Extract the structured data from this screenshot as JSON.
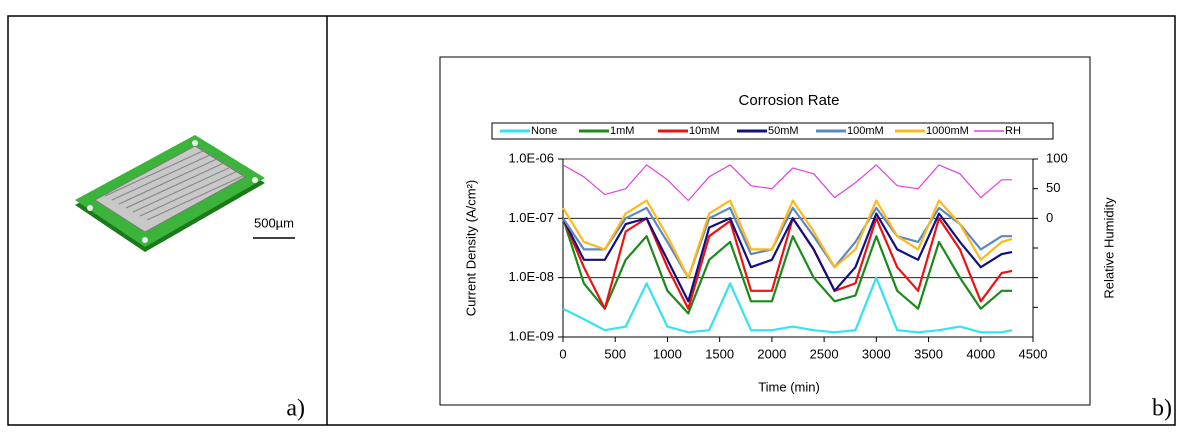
{
  "panel_a": {
    "scale_bar": "500µm",
    "label": "a)"
  },
  "panel_b_label": "b)",
  "chart_data": {
    "type": "line",
    "title": "Corrosion Rate",
    "x_label": "Time (min)",
    "y_label": "Current Density (A/cm²)",
    "y2_label": "Relative Humidity",
    "x": [
      0,
      200,
      400,
      600,
      800,
      1000,
      1200,
      1400,
      1600,
      1800,
      2000,
      2200,
      2400,
      2600,
      2800,
      3000,
      3200,
      3400,
      3600,
      3800,
      4000,
      4200,
      4300
    ],
    "xlim": [
      0,
      4500
    ],
    "xticks": [
      0,
      500,
      1000,
      1500,
      2000,
      2500,
      3000,
      3500,
      4000,
      4500
    ],
    "ylim": [
      1e-09,
      1e-06
    ],
    "log_y": true,
    "grid": true,
    "yticks": [
      {
        "value": 1e-09,
        "label": "1.0E-09"
      },
      {
        "value": 1e-08,
        "label": "1.0E-08"
      },
      {
        "value": 1e-07,
        "label": "1.0E-07"
      },
      {
        "value": 1e-06,
        "label": "1.0E-06"
      }
    ],
    "y2lim": [
      -200,
      100
    ],
    "y2ticks": [
      0,
      50,
      100
    ],
    "y2minor_ticks": [
      -150,
      -100,
      -50
    ],
    "series": [
      {
        "name": "None",
        "color": "#33e3ee",
        "values": [
          3e-09,
          2e-09,
          1.3e-09,
          1.5e-09,
          8e-09,
          1.5e-09,
          1.2e-09,
          1.3e-09,
          8e-09,
          1.3e-09,
          1.3e-09,
          1.5e-09,
          1.3e-09,
          1.2e-09,
          1.3e-09,
          1e-08,
          1.3e-09,
          1.2e-09,
          1.3e-09,
          1.5e-09,
          1.2e-09,
          1.2e-09,
          1.3e-09
        ]
      },
      {
        "name": "1mM",
        "color": "#1a8a1a",
        "values": [
          1e-07,
          8e-09,
          3e-09,
          2e-08,
          5e-08,
          6e-09,
          2.5e-09,
          2e-08,
          4e-08,
          4e-09,
          4e-09,
          5e-08,
          1e-08,
          4e-09,
          5e-09,
          5e-08,
          6e-09,
          3e-09,
          4e-08,
          1e-08,
          3e-09,
          6e-09,
          6e-09
        ]
      },
      {
        "name": "10mM",
        "color": "#ee1111",
        "values": [
          1e-07,
          1.5e-08,
          3e-09,
          6e-08,
          1e-07,
          1.5e-08,
          3e-09,
          5e-08,
          9e-08,
          6e-09,
          6e-09,
          1e-07,
          3e-08,
          6e-09,
          8e-09,
          1e-07,
          1.5e-08,
          6e-09,
          1e-07,
          3e-08,
          4e-09,
          1.2e-08,
          1.3e-08
        ]
      },
      {
        "name": "50mM",
        "color": "#101080",
        "values": [
          1e-07,
          2e-08,
          2e-08,
          8e-08,
          1e-07,
          2e-08,
          4e-09,
          7e-08,
          1e-07,
          1.5e-08,
          2e-08,
          1e-07,
          3e-08,
          6e-09,
          1.5e-08,
          1.2e-07,
          3e-08,
          2e-08,
          1.2e-07,
          4e-08,
          1.5e-08,
          2.5e-08,
          2.7e-08
        ]
      },
      {
        "name": "100mM",
        "color": "#5b88c4",
        "values": [
          1e-07,
          3e-08,
          3e-08,
          1e-07,
          1.5e-07,
          4e-08,
          1e-08,
          1e-07,
          1.5e-07,
          2.5e-08,
          3e-08,
          1.5e-07,
          5e-08,
          1.5e-08,
          4e-08,
          1.5e-07,
          5e-08,
          4e-08,
          1.5e-07,
          8e-08,
          3e-08,
          5e-08,
          5e-08
        ]
      },
      {
        "name": "1000mM",
        "color": "#ffb81c",
        "values": [
          1.5e-07,
          4e-08,
          3e-08,
          1.2e-07,
          2e-07,
          5e-08,
          1e-08,
          1.2e-07,
          2e-07,
          3e-08,
          3e-08,
          2e-07,
          6e-08,
          1.5e-08,
          3e-08,
          2e-07,
          5e-08,
          3e-08,
          2e-07,
          8e-08,
          2e-08,
          4e-08,
          4.5e-08
        ]
      },
      {
        "name": "RH",
        "color": "#e040e0",
        "axis": "y2",
        "values": [
          90,
          70,
          40,
          50,
          90,
          65,
          30,
          70,
          90,
          55,
          50,
          85,
          75,
          35,
          60,
          90,
          55,
          50,
          90,
          75,
          35,
          65,
          65
        ]
      }
    ]
  }
}
